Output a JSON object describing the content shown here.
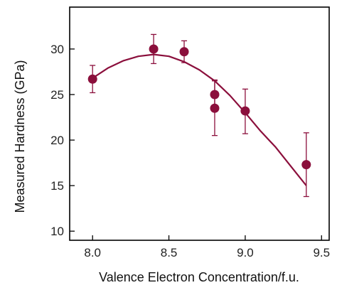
{
  "chart_data": {
    "type": "scatter",
    "xlabel": "Valence Electron Concentration/f.u.",
    "ylabel": "Measured Hardness (GPa)",
    "xlim": [
      7.85,
      9.55
    ],
    "ylim": [
      9.0,
      34.6
    ],
    "x_ticks": [
      8.0,
      8.5,
      9.0,
      9.5
    ],
    "x_tick_labels": [
      "8.0",
      "8.5",
      "9.0",
      "9.5"
    ],
    "y_ticks": [
      10,
      15,
      20,
      25,
      30
    ],
    "y_tick_labels": [
      "10",
      "15",
      "20",
      "25",
      "30"
    ],
    "grid": false,
    "legend": "none",
    "color": "#8b0f3c",
    "points": [
      {
        "x": 8.0,
        "y": 26.7,
        "err_low": 25.2,
        "err_high": 28.2
      },
      {
        "x": 8.4,
        "y": 30.0,
        "err_low": 28.4,
        "err_high": 31.6
      },
      {
        "x": 8.6,
        "y": 29.7,
        "err_low": 28.5,
        "err_high": 30.9
      },
      {
        "x": 8.8,
        "y": 25.0,
        "err_low": 23.6,
        "err_high": 26.5
      },
      {
        "x": 8.8,
        "y": 23.5,
        "err_low": 20.5,
        "err_high": 26.6
      },
      {
        "x": 9.0,
        "y": 23.2,
        "err_low": 20.7,
        "err_high": 25.6
      },
      {
        "x": 9.4,
        "y": 17.3,
        "err_low": 13.8,
        "err_high": 20.8
      }
    ],
    "fit_curve": {
      "x": [
        8.0,
        8.1,
        8.2,
        8.3,
        8.4,
        8.5,
        8.6,
        8.7,
        8.8,
        8.9,
        9.0,
        9.1,
        9.2,
        9.3,
        9.4
      ],
      "y": [
        26.8,
        27.9,
        28.7,
        29.2,
        29.4,
        29.2,
        28.6,
        27.7,
        26.5,
        24.9,
        23.0,
        21.0,
        19.2,
        17.1,
        15.0
      ]
    }
  }
}
